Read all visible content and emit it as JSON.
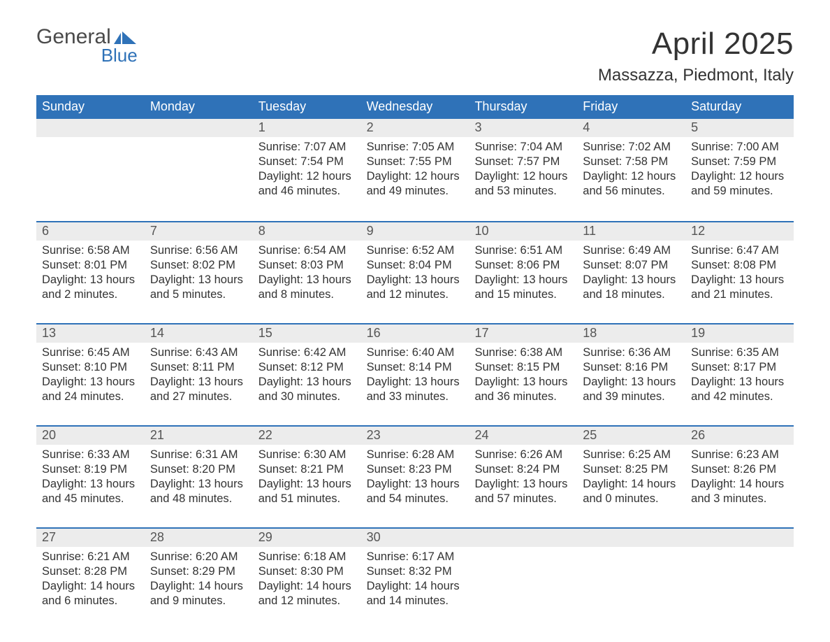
{
  "logo": {
    "word1": "General",
    "word2": "Blue"
  },
  "title": "April 2025",
  "location": "Massazza, Piedmont, Italy",
  "colors": {
    "brand_blue": "#2f72b8",
    "header_gray": "#ececec",
    "text": "#333333",
    "logo_gray": "#4a4a4a",
    "background": "#ffffff"
  },
  "typography": {
    "title_size_pt": 33,
    "location_size_pt": 18,
    "dayhead_size_pt": 14,
    "daynum_size_pt": 14,
    "body_size_pt": 12
  },
  "day_labels": [
    "Sunday",
    "Monday",
    "Tuesday",
    "Wednesday",
    "Thursday",
    "Friday",
    "Saturday"
  ],
  "weeks": [
    [
      {
        "day": "",
        "sunrise": "",
        "sunset": "",
        "daylight1": "",
        "daylight2": "",
        "empty": true
      },
      {
        "day": "",
        "sunrise": "",
        "sunset": "",
        "daylight1": "",
        "daylight2": "",
        "empty": true
      },
      {
        "day": "1",
        "sunrise": "Sunrise: 7:07 AM",
        "sunset": "Sunset: 7:54 PM",
        "daylight1": "Daylight: 12 hours",
        "daylight2": "and 46 minutes."
      },
      {
        "day": "2",
        "sunrise": "Sunrise: 7:05 AM",
        "sunset": "Sunset: 7:55 PM",
        "daylight1": "Daylight: 12 hours",
        "daylight2": "and 49 minutes."
      },
      {
        "day": "3",
        "sunrise": "Sunrise: 7:04 AM",
        "sunset": "Sunset: 7:57 PM",
        "daylight1": "Daylight: 12 hours",
        "daylight2": "and 53 minutes."
      },
      {
        "day": "4",
        "sunrise": "Sunrise: 7:02 AM",
        "sunset": "Sunset: 7:58 PM",
        "daylight1": "Daylight: 12 hours",
        "daylight2": "and 56 minutes."
      },
      {
        "day": "5",
        "sunrise": "Sunrise: 7:00 AM",
        "sunset": "Sunset: 7:59 PM",
        "daylight1": "Daylight: 12 hours",
        "daylight2": "and 59 minutes."
      }
    ],
    [
      {
        "day": "6",
        "sunrise": "Sunrise: 6:58 AM",
        "sunset": "Sunset: 8:01 PM",
        "daylight1": "Daylight: 13 hours",
        "daylight2": "and 2 minutes."
      },
      {
        "day": "7",
        "sunrise": "Sunrise: 6:56 AM",
        "sunset": "Sunset: 8:02 PM",
        "daylight1": "Daylight: 13 hours",
        "daylight2": "and 5 minutes."
      },
      {
        "day": "8",
        "sunrise": "Sunrise: 6:54 AM",
        "sunset": "Sunset: 8:03 PM",
        "daylight1": "Daylight: 13 hours",
        "daylight2": "and 8 minutes."
      },
      {
        "day": "9",
        "sunrise": "Sunrise: 6:52 AM",
        "sunset": "Sunset: 8:04 PM",
        "daylight1": "Daylight: 13 hours",
        "daylight2": "and 12 minutes."
      },
      {
        "day": "10",
        "sunrise": "Sunrise: 6:51 AM",
        "sunset": "Sunset: 8:06 PM",
        "daylight1": "Daylight: 13 hours",
        "daylight2": "and 15 minutes."
      },
      {
        "day": "11",
        "sunrise": "Sunrise: 6:49 AM",
        "sunset": "Sunset: 8:07 PM",
        "daylight1": "Daylight: 13 hours",
        "daylight2": "and 18 minutes."
      },
      {
        "day": "12",
        "sunrise": "Sunrise: 6:47 AM",
        "sunset": "Sunset: 8:08 PM",
        "daylight1": "Daylight: 13 hours",
        "daylight2": "and 21 minutes."
      }
    ],
    [
      {
        "day": "13",
        "sunrise": "Sunrise: 6:45 AM",
        "sunset": "Sunset: 8:10 PM",
        "daylight1": "Daylight: 13 hours",
        "daylight2": "and 24 minutes."
      },
      {
        "day": "14",
        "sunrise": "Sunrise: 6:43 AM",
        "sunset": "Sunset: 8:11 PM",
        "daylight1": "Daylight: 13 hours",
        "daylight2": "and 27 minutes."
      },
      {
        "day": "15",
        "sunrise": "Sunrise: 6:42 AM",
        "sunset": "Sunset: 8:12 PM",
        "daylight1": "Daylight: 13 hours",
        "daylight2": "and 30 minutes."
      },
      {
        "day": "16",
        "sunrise": "Sunrise: 6:40 AM",
        "sunset": "Sunset: 8:14 PM",
        "daylight1": "Daylight: 13 hours",
        "daylight2": "and 33 minutes."
      },
      {
        "day": "17",
        "sunrise": "Sunrise: 6:38 AM",
        "sunset": "Sunset: 8:15 PM",
        "daylight1": "Daylight: 13 hours",
        "daylight2": "and 36 minutes."
      },
      {
        "day": "18",
        "sunrise": "Sunrise: 6:36 AM",
        "sunset": "Sunset: 8:16 PM",
        "daylight1": "Daylight: 13 hours",
        "daylight2": "and 39 minutes."
      },
      {
        "day": "19",
        "sunrise": "Sunrise: 6:35 AM",
        "sunset": "Sunset: 8:17 PM",
        "daylight1": "Daylight: 13 hours",
        "daylight2": "and 42 minutes."
      }
    ],
    [
      {
        "day": "20",
        "sunrise": "Sunrise: 6:33 AM",
        "sunset": "Sunset: 8:19 PM",
        "daylight1": "Daylight: 13 hours",
        "daylight2": "and 45 minutes."
      },
      {
        "day": "21",
        "sunrise": "Sunrise: 6:31 AM",
        "sunset": "Sunset: 8:20 PM",
        "daylight1": "Daylight: 13 hours",
        "daylight2": "and 48 minutes."
      },
      {
        "day": "22",
        "sunrise": "Sunrise: 6:30 AM",
        "sunset": "Sunset: 8:21 PM",
        "daylight1": "Daylight: 13 hours",
        "daylight2": "and 51 minutes."
      },
      {
        "day": "23",
        "sunrise": "Sunrise: 6:28 AM",
        "sunset": "Sunset: 8:23 PM",
        "daylight1": "Daylight: 13 hours",
        "daylight2": "and 54 minutes."
      },
      {
        "day": "24",
        "sunrise": "Sunrise: 6:26 AM",
        "sunset": "Sunset: 8:24 PM",
        "daylight1": "Daylight: 13 hours",
        "daylight2": "and 57 minutes."
      },
      {
        "day": "25",
        "sunrise": "Sunrise: 6:25 AM",
        "sunset": "Sunset: 8:25 PM",
        "daylight1": "Daylight: 14 hours",
        "daylight2": "and 0 minutes."
      },
      {
        "day": "26",
        "sunrise": "Sunrise: 6:23 AM",
        "sunset": "Sunset: 8:26 PM",
        "daylight1": "Daylight: 14 hours",
        "daylight2": "and 3 minutes."
      }
    ],
    [
      {
        "day": "27",
        "sunrise": "Sunrise: 6:21 AM",
        "sunset": "Sunset: 8:28 PM",
        "daylight1": "Daylight: 14 hours",
        "daylight2": "and 6 minutes."
      },
      {
        "day": "28",
        "sunrise": "Sunrise: 6:20 AM",
        "sunset": "Sunset: 8:29 PM",
        "daylight1": "Daylight: 14 hours",
        "daylight2": "and 9 minutes."
      },
      {
        "day": "29",
        "sunrise": "Sunrise: 6:18 AM",
        "sunset": "Sunset: 8:30 PM",
        "daylight1": "Daylight: 14 hours",
        "daylight2": "and 12 minutes."
      },
      {
        "day": "30",
        "sunrise": "Sunrise: 6:17 AM",
        "sunset": "Sunset: 8:32 PM",
        "daylight1": "Daylight: 14 hours",
        "daylight2": "and 14 minutes."
      },
      {
        "day": "",
        "sunrise": "",
        "sunset": "",
        "daylight1": "",
        "daylight2": "",
        "empty": true
      },
      {
        "day": "",
        "sunrise": "",
        "sunset": "",
        "daylight1": "",
        "daylight2": "",
        "empty": true
      },
      {
        "day": "",
        "sunrise": "",
        "sunset": "",
        "daylight1": "",
        "daylight2": "",
        "empty": true
      }
    ]
  ]
}
